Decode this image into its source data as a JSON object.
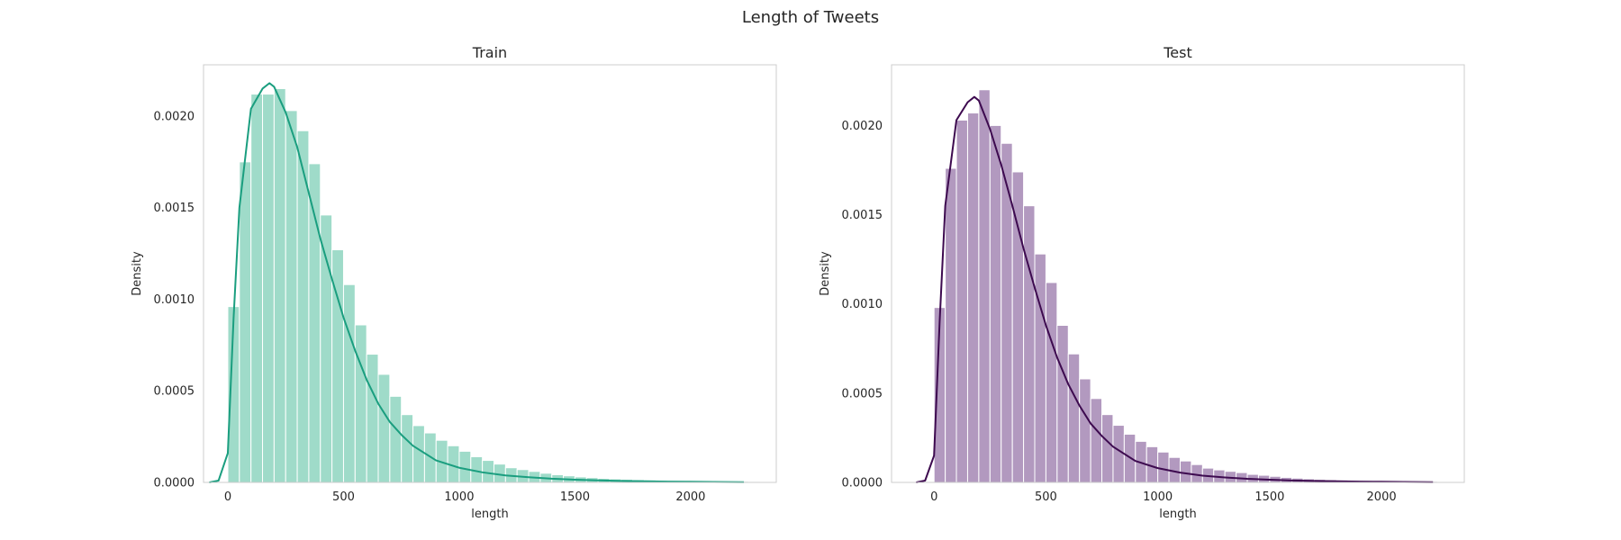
{
  "figure": {
    "title": "Length of Tweets"
  },
  "chart_data": [
    {
      "type": "histogram",
      "title": "Train",
      "xlabel": "length",
      "ylabel": "Density",
      "xlim": [
        -105,
        2370
      ],
      "ylim": [
        0,
        0.00228
      ],
      "xticks": [
        0,
        500,
        1000,
        1500,
        2000
      ],
      "xtick_labels": [
        "0",
        "500",
        "1000",
        "1500",
        "2000"
      ],
      "yticks": [
        0,
        0.0005,
        0.001,
        0.0015,
        0.002
      ],
      "ytick_labels": [
        "0.0000",
        "0.0005",
        "0.0010",
        "0.0015",
        "0.0020"
      ],
      "grid": false,
      "bar_color": "#9fdbc9",
      "kde_color": "#1a9e7f",
      "bin_start": 0,
      "bin_width": 50,
      "values": [
        0.00096,
        0.00175,
        0.00212,
        0.00212,
        0.00215,
        0.00203,
        0.00192,
        0.00174,
        0.00146,
        0.00127,
        0.00108,
        0.00086,
        0.0007,
        0.00059,
        0.00047,
        0.00037,
        0.00031,
        0.00027,
        0.00023,
        0.0002,
        0.00017,
        0.00014,
        0.00012,
        0.0001,
        8e-05,
        7e-05,
        6e-05,
        5e-05,
        4.2e-05,
        3.6e-05,
        3e-05,
        2.6e-05,
        2.2e-05,
        1.9e-05,
        1.7e-05,
        1.5e-05,
        1.3e-05,
        1.1e-05,
        1e-05,
        9e-06,
        8e-06,
        7e-06,
        6.5e-06,
        6e-06,
        5.5e-06,
        5e-06
      ],
      "kde": {
        "x": [
          -80,
          -40,
          0,
          25,
          50,
          100,
          150,
          180,
          200,
          250,
          300,
          350,
          400,
          450,
          500,
          550,
          600,
          650,
          700,
          750,
          800,
          900,
          1000,
          1100,
          1200,
          1300,
          1400,
          1500,
          1600,
          1700,
          1800,
          1900,
          2000,
          2100,
          2230
        ],
        "y": [
          0,
          1e-05,
          0.00016,
          0.0009,
          0.0015,
          0.00204,
          0.00215,
          0.00218,
          0.00216,
          0.00202,
          0.00183,
          0.00158,
          0.00133,
          0.00111,
          0.0009,
          0.00072,
          0.00056,
          0.00043,
          0.00033,
          0.00026,
          0.0002,
          0.00012,
          8e-05,
          5.5e-05,
          3.8e-05,
          2.8e-05,
          2e-05,
          1.5e-05,
          1.1e-05,
          8e-06,
          6e-06,
          4.5e-06,
          3.5e-06,
          2.5e-06,
          1.5e-06
        ]
      }
    },
    {
      "type": "histogram",
      "title": "Test",
      "xlabel": "length",
      "ylabel": "Density",
      "xlim": [
        -190,
        2370
      ],
      "ylim": [
        0,
        0.00234
      ],
      "xticks": [
        0,
        500,
        1000,
        1500,
        2000
      ],
      "xtick_labels": [
        "0",
        "500",
        "1000",
        "1500",
        "2000"
      ],
      "yticks": [
        0,
        0.0005,
        0.001,
        0.0015,
        0.002
      ],
      "ytick_labels": [
        "0.0000",
        "0.0005",
        "0.0010",
        "0.0015",
        "0.0020"
      ],
      "grid": false,
      "bar_color": "#b299bf",
      "kde_color": "#3d0a4f",
      "bin_start": 0,
      "bin_width": 50,
      "values": [
        0.00098,
        0.00176,
        0.00203,
        0.00207,
        0.0022,
        0.002,
        0.0019,
        0.00174,
        0.00155,
        0.00128,
        0.00112,
        0.00088,
        0.00072,
        0.00058,
        0.00047,
        0.00038,
        0.00032,
        0.00027,
        0.00023,
        0.0002,
        0.00017,
        0.00014,
        0.00012,
        0.0001,
        8e-05,
        7e-05,
        6.2e-05,
        5.5e-05,
        4.5e-05,
        4e-05,
        3.4e-05,
        2.8e-05,
        2.4e-05,
        2e-05,
        1.7e-05,
        1.5e-05,
        1.3e-05,
        1.1e-05,
        1e-05,
        9e-06,
        8e-06,
        7e-06,
        6.5e-06,
        6e-06,
        5.5e-06,
        5e-06
      ],
      "kde": {
        "x": [
          -80,
          -40,
          0,
          25,
          50,
          100,
          150,
          180,
          200,
          250,
          300,
          350,
          400,
          450,
          500,
          550,
          600,
          650,
          700,
          750,
          800,
          900,
          1000,
          1100,
          1200,
          1300,
          1400,
          1500,
          1600,
          1700,
          1800,
          1900,
          2000,
          2100,
          2230
        ],
        "y": [
          0,
          1e-05,
          0.00015,
          0.0009,
          0.00155,
          0.00203,
          0.00213,
          0.00216,
          0.00214,
          0.00198,
          0.00178,
          0.00155,
          0.00131,
          0.00109,
          0.00088,
          0.0007,
          0.00055,
          0.00043,
          0.00033,
          0.00026,
          0.0002,
          0.00012,
          8e-05,
          5.5e-05,
          3.8e-05,
          2.8e-05,
          2e-05,
          1.5e-05,
          1.1e-05,
          8e-06,
          6e-06,
          4.5e-06,
          3.5e-06,
          2.5e-06,
          1.5e-06
        ]
      }
    }
  ]
}
